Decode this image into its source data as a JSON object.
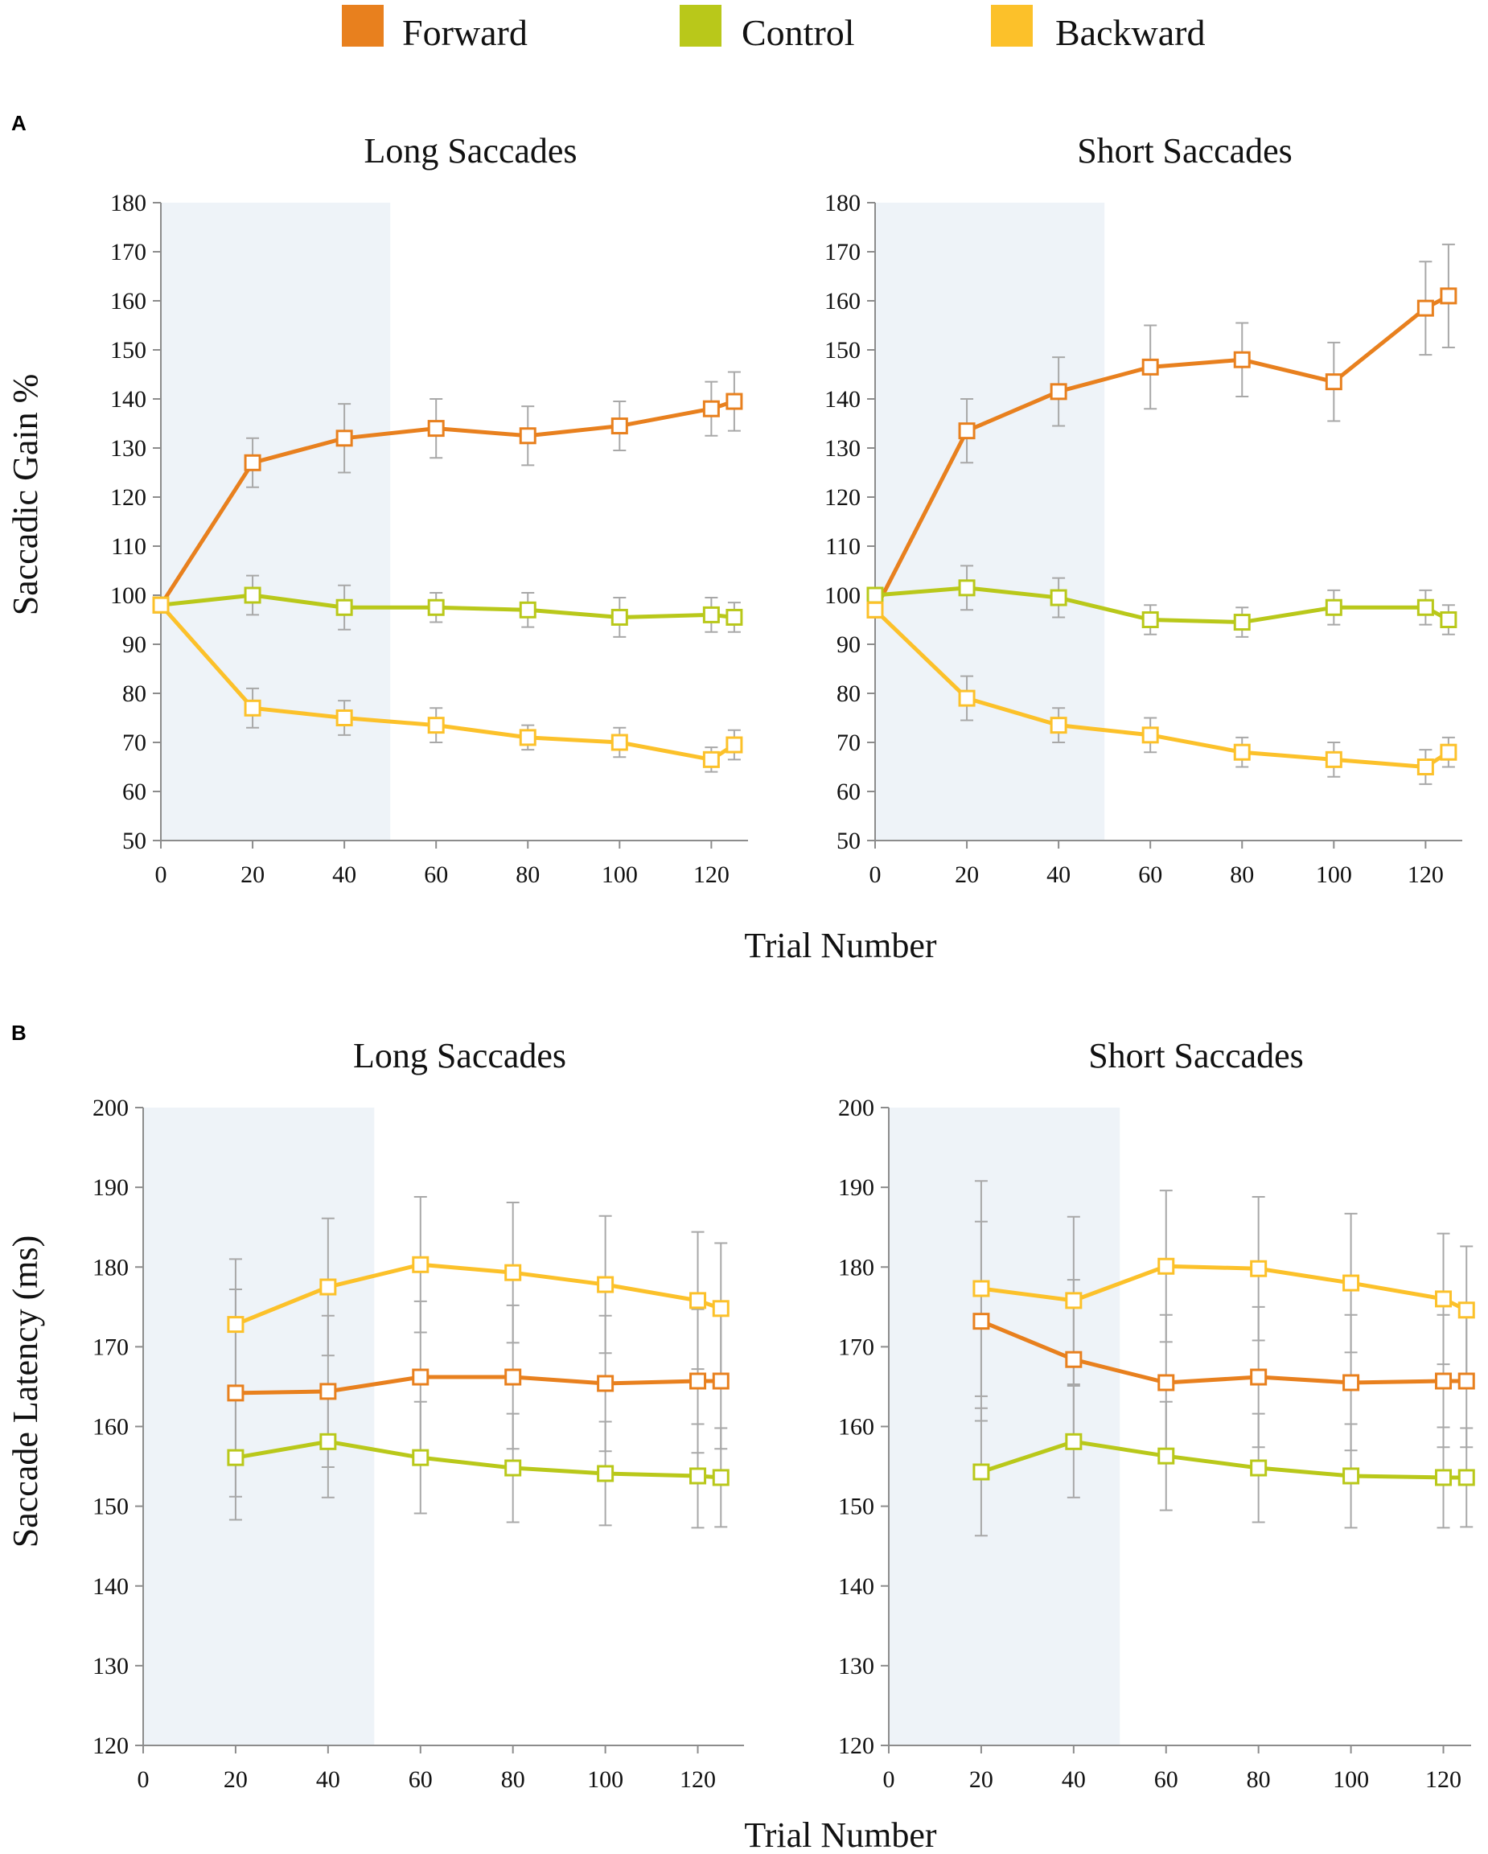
{
  "colors": {
    "forward": "#E8801E",
    "control": "#B9C81A",
    "backward": "#FCC12A",
    "shade": "#EEF3F8",
    "error_bar": "#A8A8A8",
    "axis": "#8C8C8C"
  },
  "legend": [
    {
      "key": "forward",
      "label": "Forward"
    },
    {
      "key": "control",
      "label": "Control"
    },
    {
      "key": "backward",
      "label": "Backward"
    }
  ],
  "panels": {
    "A": {
      "label": "A",
      "xlabel": "Trial Number",
      "ylabel": "Saccadic Gain %"
    },
    "B": {
      "label": "B",
      "xlabel": "Trial Number",
      "ylabel": "Saccade Latency (ms)"
    }
  },
  "chart_data": [
    {
      "type": "line",
      "id": "A-long",
      "panel": "A",
      "title": "Long Saccades",
      "xlim": [
        0,
        128
      ],
      "ylim": [
        50,
        180
      ],
      "xticks": [
        0,
        20,
        40,
        60,
        80,
        100,
        120
      ],
      "yticks": [
        50,
        60,
        70,
        80,
        90,
        100,
        110,
        120,
        130,
        140,
        150,
        160,
        170,
        180
      ],
      "shaded_x": [
        0,
        50
      ],
      "x": [
        0,
        20,
        40,
        60,
        80,
        100,
        120,
        125
      ],
      "series": [
        {
          "name": "Forward",
          "key": "forward",
          "values": [
            98,
            127,
            132,
            134,
            132.5,
            134.5,
            138,
            139.5
          ],
          "errors": [
            0,
            5,
            7,
            6,
            6,
            5,
            5.5,
            6
          ]
        },
        {
          "name": "Control",
          "key": "control",
          "values": [
            98,
            100,
            97.5,
            97.5,
            97,
            95.5,
            96,
            95.5
          ],
          "errors": [
            0,
            4,
            4.5,
            3,
            3.5,
            4,
            3.5,
            3
          ]
        },
        {
          "name": "Backward",
          "key": "backward",
          "values": [
            98,
            77,
            75,
            73.5,
            71,
            70,
            66.5,
            69.5
          ],
          "errors": [
            0,
            4,
            3.5,
            3.5,
            2.5,
            3,
            2.5,
            3
          ]
        }
      ]
    },
    {
      "type": "line",
      "id": "A-short",
      "panel": "A",
      "title": "Short Saccades",
      "xlim": [
        0,
        128
      ],
      "ylim": [
        50,
        180
      ],
      "xticks": [
        0,
        20,
        40,
        60,
        80,
        100,
        120
      ],
      "yticks": [
        50,
        60,
        70,
        80,
        90,
        100,
        110,
        120,
        130,
        140,
        150,
        160,
        170,
        180
      ],
      "shaded_x": [
        0,
        50
      ],
      "x": [
        0,
        20,
        40,
        60,
        80,
        100,
        120,
        125
      ],
      "series": [
        {
          "name": "Forward",
          "key": "forward",
          "values": [
            97,
            133.5,
            141.5,
            146.5,
            148,
            143.5,
            158.5,
            161
          ],
          "errors": [
            0,
            6.5,
            7,
            8.5,
            7.5,
            8,
            9.5,
            10.5
          ]
        },
        {
          "name": "Control",
          "key": "control",
          "values": [
            100,
            101.5,
            99.5,
            95,
            94.5,
            97.5,
            97.5,
            95
          ],
          "errors": [
            0,
            4.5,
            4,
            3,
            3,
            3.5,
            3.5,
            3
          ]
        },
        {
          "name": "Backward",
          "key": "backward",
          "values": [
            97,
            79,
            73.5,
            71.5,
            68,
            66.5,
            65,
            68
          ],
          "errors": [
            0,
            4.5,
            3.5,
            3.5,
            3,
            3.5,
            3.5,
            3
          ]
        }
      ]
    },
    {
      "type": "line",
      "id": "B-long",
      "panel": "B",
      "title": "Long Saccades",
      "xlim": [
        0,
        130
      ],
      "ylim": [
        120,
        200
      ],
      "xticks": [
        0,
        20,
        40,
        60,
        80,
        100,
        120
      ],
      "yticks": [
        120,
        130,
        140,
        150,
        160,
        170,
        180,
        190,
        200
      ],
      "shaded_x": [
        0,
        50
      ],
      "x": [
        20,
        40,
        60,
        80,
        100,
        120,
        125
      ],
      "series": [
        {
          "name": "Forward",
          "key": "forward",
          "values": [
            164.2,
            164.4,
            166.2,
            166.2,
            165.4,
            165.7,
            165.7
          ],
          "errors": [
            13,
            9.5,
            9.5,
            9,
            8.5,
            9,
            8.5
          ]
        },
        {
          "name": "Control",
          "key": "control",
          "values": [
            156.1,
            158.1,
            156.1,
            154.8,
            154.1,
            153.8,
            153.6
          ],
          "errors": [
            7.8,
            7,
            7,
            6.8,
            6.5,
            6.5,
            6.2
          ]
        },
        {
          "name": "Backward",
          "key": "backward",
          "values": [
            172.8,
            177.5,
            180.3,
            179.3,
            177.8,
            175.8,
            174.8
          ],
          "errors": [
            8.2,
            8.6,
            8.5,
            8.8,
            8.6,
            8.6,
            8.2
          ]
        }
      ]
    },
    {
      "type": "line",
      "id": "B-short",
      "panel": "B",
      "title": "Short Saccades",
      "xlim": [
        0,
        126
      ],
      "ylim": [
        120,
        200
      ],
      "xticks": [
        0,
        20,
        40,
        60,
        80,
        100,
        120
      ],
      "yticks": [
        120,
        130,
        140,
        150,
        160,
        170,
        180,
        190,
        200
      ],
      "shaded_x": [
        0,
        50
      ],
      "x": [
        20,
        40,
        60,
        80,
        100,
        120,
        125
      ],
      "series": [
        {
          "name": "Forward",
          "key": "forward",
          "values": [
            173.2,
            168.4,
            165.5,
            166.2,
            165.5,
            165.7,
            165.7
          ],
          "errors": [
            12.5,
            10,
            8.5,
            8.8,
            8.5,
            8.3,
            8.3
          ]
        },
        {
          "name": "Control",
          "key": "control",
          "values": [
            154.3,
            158.1,
            156.3,
            154.8,
            153.8,
            153.6,
            153.6
          ],
          "errors": [
            8,
            7,
            6.8,
            6.8,
            6.5,
            6.3,
            6.2
          ]
        },
        {
          "name": "Backward",
          "key": "backward",
          "values": [
            177.3,
            175.8,
            180.1,
            179.8,
            178,
            176,
            174.6
          ],
          "errors": [
            13.5,
            10.5,
            9.5,
            9,
            8.7,
            8.2,
            8
          ]
        }
      ]
    }
  ]
}
